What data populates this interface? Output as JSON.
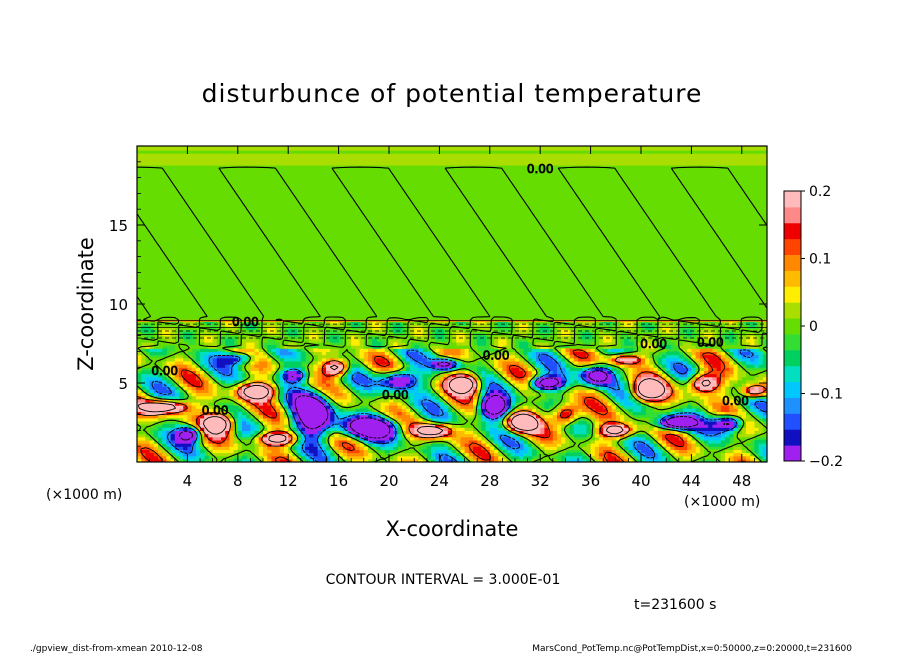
{
  "chart_data": {
    "type": "heatmap",
    "title": "disturbunce of potential temperature",
    "xlabel": "X-coordinate",
    "ylabel": "Z-coordinate",
    "x_units": "(×1000 m)",
    "y_units": "(×1000 m)",
    "xlim": [
      0,
      50
    ],
    "ylim": [
      0,
      20
    ],
    "x_ticks": [
      "4",
      "8",
      "12",
      "16",
      "20",
      "24",
      "28",
      "32",
      "36",
      "40",
      "44",
      "48"
    ],
    "y_ticks": [
      "5",
      "10",
      "15"
    ],
    "colorbar": {
      "range": [
        -0.2,
        0.2
      ],
      "tick_labels": [
        "0.2",
        "0.1",
        "0",
        "−0.1",
        "−0.2"
      ],
      "colors": [
        "#a020f0",
        "#1010c0",
        "#2050ff",
        "#1e90ff",
        "#00c8ff",
        "#00e0c0",
        "#00d060",
        "#33dd33",
        "#66dd00",
        "#aadd00",
        "#ffee00",
        "#ffbb00",
        "#ff8800",
        "#ff4400",
        "#ee0000",
        "#ff8888",
        "#ffbbbb"
      ]
    },
    "contour_label": "0.00",
    "grid": false
  },
  "notes": {
    "contour_interval": "CONTOUR INTERVAL = 3.000E-01",
    "time": "t=231600 s",
    "footer_left": "./gpview_dist-from-xmean  2010-12-08",
    "footer_right": "MarsCond_PotTemp.nc@PotTempDist,x=0:50000,z=0:20000,t=231600"
  }
}
